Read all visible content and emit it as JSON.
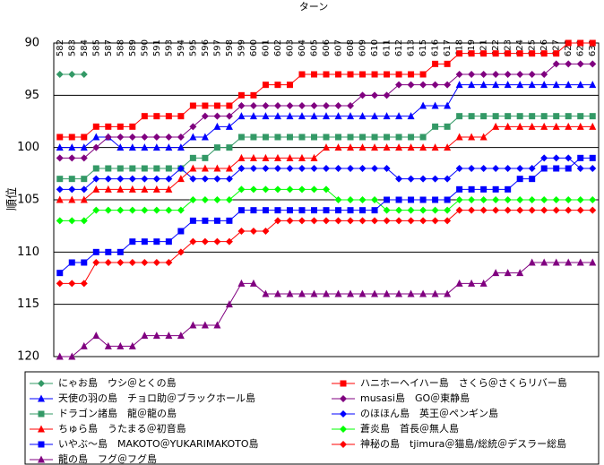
{
  "chart_data": {
    "type": "line",
    "x_label": "ターン",
    "y_label": "順位",
    "categories": [
      "582",
      "583",
      "584",
      "585",
      "587",
      "588",
      "589",
      "590",
      "591",
      "593",
      "594",
      "595",
      "596",
      "597",
      "598",
      "599",
      "600",
      "601",
      "602",
      "603",
      "604",
      "605",
      "606",
      "607",
      "608",
      "609",
      "610",
      "611",
      "612",
      "613",
      "615",
      "616",
      "617",
      "618",
      "619",
      "621",
      "622",
      "623",
      "624",
      "625",
      "626",
      "627",
      "628",
      "629",
      "630"
    ],
    "ylim": [
      90,
      120
    ],
    "yticks": [
      90,
      95,
      100,
      105,
      110,
      115,
      120
    ],
    "y_inverted": true,
    "grid": true,
    "series": [
      {
        "name": "にゃお島　ウシ＠とくの島",
        "color": "#339966",
        "marker": "diamond",
        "values": [
          93,
          93,
          93,
          null,
          null,
          null,
          null,
          null,
          null,
          null,
          null,
          null,
          null,
          null,
          null,
          null,
          null,
          null,
          null,
          null,
          null,
          null,
          null,
          null,
          null,
          null,
          null,
          null,
          null,
          null,
          null,
          null,
          null,
          null,
          null,
          null,
          null,
          null,
          null,
          null,
          null,
          null,
          null,
          null,
          null
        ]
      },
      {
        "name": "ハニホーヘイハー島　さくら＠さくらリバー島",
        "color": "#ff0000",
        "marker": "square",
        "values": [
          99,
          99,
          99,
          98,
          98,
          98,
          98,
          97,
          97,
          97,
          97,
          96,
          96,
          96,
          96,
          95,
          95,
          94,
          94,
          94,
          93,
          93,
          93,
          93,
          93,
          93,
          93,
          93,
          93,
          93,
          93,
          92,
          92,
          91,
          91,
          91,
          91,
          91,
          91,
          91,
          91,
          91,
          90,
          90,
          90
        ]
      },
      {
        "name": "天使の羽の島　チョロ助＠ブラックホール島",
        "color": "#0000ff",
        "marker": "triangle",
        "values": [
          100,
          100,
          100,
          99,
          99,
          100,
          100,
          100,
          100,
          100,
          100,
          99,
          99,
          98,
          98,
          97,
          97,
          97,
          97,
          97,
          97,
          97,
          97,
          97,
          97,
          97,
          97,
          97,
          97,
          97,
          96,
          96,
          96,
          94,
          94,
          94,
          94,
          94,
          94,
          94,
          94,
          94,
          94,
          94,
          94
        ]
      },
      {
        "name": "musasi島　GO＠東静島",
        "color": "#800080",
        "marker": "diamond",
        "values": [
          101,
          101,
          101,
          100,
          99,
          99,
          99,
          99,
          99,
          99,
          99,
          98,
          97,
          97,
          97,
          96,
          96,
          96,
          96,
          96,
          96,
          96,
          96,
          96,
          96,
          95,
          95,
          95,
          94,
          94,
          94,
          94,
          94,
          93,
          93,
          93,
          93,
          93,
          93,
          93,
          93,
          92,
          92,
          92,
          92
        ]
      },
      {
        "name": "ドラゴン諸島　龍＠龍の島",
        "color": "#339966",
        "marker": "square",
        "values": [
          103,
          103,
          103,
          102,
          102,
          102,
          102,
          102,
          102,
          102,
          102,
          101,
          101,
          100,
          100,
          99,
          99,
          99,
          99,
          99,
          99,
          99,
          99,
          99,
          99,
          99,
          99,
          99,
          99,
          99,
          99,
          98,
          98,
          97,
          97,
          97,
          97,
          97,
          97,
          97,
          97,
          97,
          97,
          97,
          97
        ]
      },
      {
        "name": "のほほん島　英王＠ペンギン島",
        "color": "#0000ff",
        "marker": "diamond",
        "values": [
          104,
          104,
          104,
          103,
          103,
          103,
          103,
          103,
          103,
          103,
          102,
          103,
          103,
          103,
          103,
          102,
          102,
          102,
          102,
          102,
          102,
          102,
          102,
          102,
          102,
          102,
          102,
          102,
          103,
          103,
          103,
          103,
          103,
          102,
          102,
          102,
          102,
          102,
          102,
          102,
          101,
          101,
          101,
          102,
          102
        ]
      },
      {
        "name": "ちゅら島　うたまる＠初音島",
        "color": "#ff0000",
        "marker": "triangle",
        "values": [
          105,
          105,
          105,
          104,
          104,
          104,
          104,
          104,
          104,
          104,
          103,
          102,
          102,
          102,
          102,
          101,
          101,
          101,
          101,
          101,
          101,
          101,
          100,
          100,
          100,
          100,
          100,
          100,
          100,
          100,
          100,
          100,
          100,
          99,
          99,
          99,
          98,
          98,
          98,
          98,
          98,
          98,
          98,
          98,
          98
        ]
      },
      {
        "name": "蒼炎島　首長＠無人島",
        "color": "#00ff00",
        "marker": "diamond",
        "values": [
          107,
          107,
          107,
          106,
          106,
          106,
          106,
          106,
          106,
          106,
          106,
          105,
          105,
          105,
          105,
          104,
          104,
          104,
          104,
          104,
          104,
          104,
          104,
          105,
          105,
          105,
          105,
          106,
          106,
          106,
          106,
          106,
          106,
          105,
          105,
          105,
          105,
          105,
          105,
          105,
          105,
          105,
          105,
          105,
          105
        ]
      },
      {
        "name": "いやぶ〜島　MAKOTO＠YUKARIMAKOTO島",
        "color": "#0000ff",
        "marker": "square",
        "values": [
          112,
          111,
          111,
          110,
          110,
          110,
          109,
          109,
          109,
          109,
          108,
          107,
          107,
          107,
          107,
          106,
          106,
          106,
          106,
          106,
          106,
          106,
          106,
          106,
          106,
          106,
          106,
          105,
          105,
          105,
          105,
          105,
          105,
          104,
          104,
          104,
          104,
          104,
          103,
          103,
          102,
          102,
          102,
          101,
          101
        ]
      },
      {
        "name": "神秘の島　tjimura＠猫島/総統＠デスラー総島",
        "color": "#ff0000",
        "marker": "diamond",
        "values": [
          113,
          113,
          113,
          111,
          111,
          111,
          111,
          111,
          111,
          111,
          110,
          109,
          109,
          109,
          109,
          108,
          108,
          108,
          107,
          107,
          107,
          107,
          107,
          107,
          107,
          107,
          107,
          107,
          107,
          107,
          107,
          107,
          107,
          106,
          106,
          106,
          106,
          106,
          106,
          106,
          106,
          106,
          106,
          106,
          106
        ]
      },
      {
        "name": "龍の島　フグ＠フグ島",
        "color": "#800080",
        "marker": "triangle",
        "values": [
          120,
          120,
          119,
          118,
          119,
          119,
          119,
          118,
          118,
          118,
          118,
          117,
          117,
          117,
          115,
          113,
          113,
          114,
          114,
          114,
          114,
          114,
          114,
          114,
          114,
          114,
          114,
          114,
          114,
          114,
          114,
          114,
          114,
          113,
          113,
          113,
          112,
          112,
          112,
          111,
          111,
          111,
          111,
          111,
          111
        ]
      }
    ]
  }
}
